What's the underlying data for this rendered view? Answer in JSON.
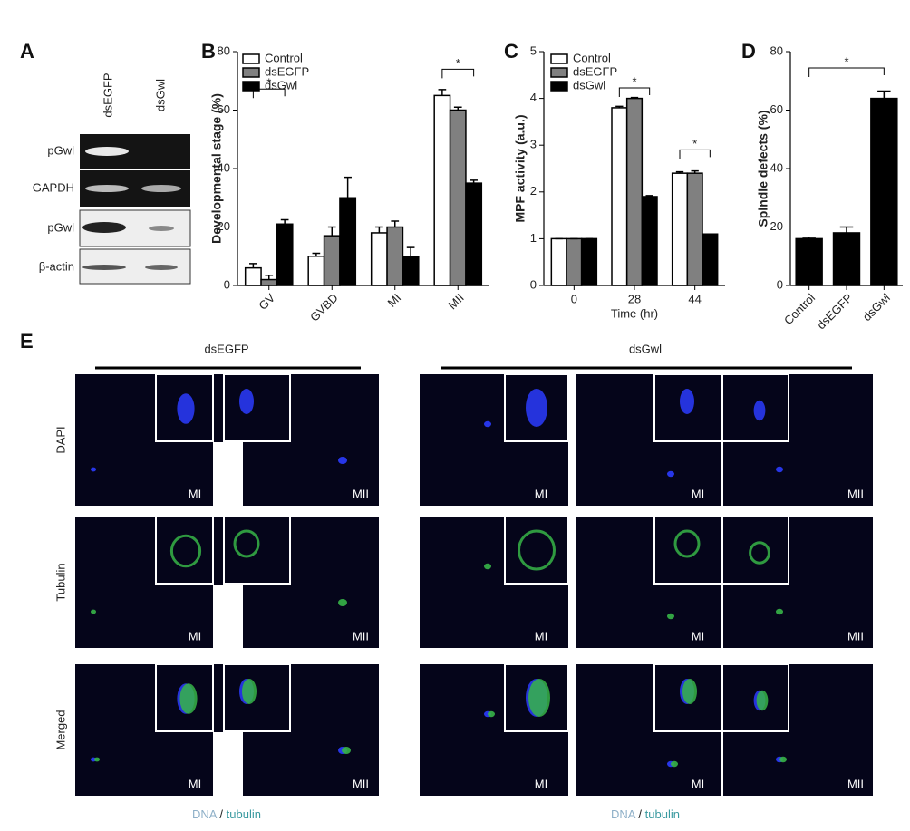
{
  "chart_data": [
    {
      "type": "bar",
      "label": "B",
      "ylabel": "Developmental stage (%)",
      "categories": [
        "GV",
        "GVBD",
        "MI",
        "MII"
      ],
      "series": [
        {
          "name": "Control",
          "color": "#ffffff",
          "values": [
            6,
            10,
            18,
            65
          ],
          "errors": [
            1.5,
            1,
            2,
            2
          ]
        },
        {
          "name": "dsEGFP",
          "color": "#808080",
          "values": [
            2,
            17,
            20,
            60
          ],
          "errors": [
            1.5,
            3,
            2,
            1
          ]
        },
        {
          "name": "dsGwl",
          "color": "#000000",
          "values": [
            21,
            30,
            10,
            35
          ],
          "errors": [
            1.5,
            7,
            3,
            1
          ]
        }
      ],
      "ylim": [
        0,
        80
      ],
      "yticks": [
        0,
        20,
        40,
        60,
        80
      ],
      "xtick_rotation": 45,
      "legend": "upper left",
      "annotations": [
        "*",
        "*"
      ]
    },
    {
      "type": "bar",
      "label": "C",
      "ylabel": "MPF activity (a.u.)",
      "xlabel": "Time (hr)",
      "categories": [
        "0",
        "28",
        "44"
      ],
      "series": [
        {
          "name": "Control",
          "color": "#ffffff",
          "values": [
            1,
            3.8,
            2.4
          ],
          "errors": [
            0,
            0.03,
            0.03
          ]
        },
        {
          "name": "dsEGFP",
          "color": "#808080",
          "values": [
            1,
            4.0,
            2.4
          ],
          "errors": [
            0,
            0.02,
            0.05
          ]
        },
        {
          "name": "dsGwl",
          "color": "#000000",
          "values": [
            1,
            1.9,
            1.1
          ],
          "errors": [
            0,
            0.02,
            0
          ]
        }
      ],
      "ylim": [
        0,
        5
      ],
      "yticks": [
        0,
        1,
        2,
        3,
        4,
        5
      ],
      "xtick_rotation": 0,
      "legend": "upper left",
      "annotations": [
        "*",
        "*"
      ]
    },
    {
      "type": "bar",
      "label": "D",
      "ylabel": "Spindle defects (%)",
      "categories": [
        "Control",
        "dsEGFP",
        "dsGwl"
      ],
      "values": [
        16,
        18,
        64
      ],
      "errors": [
        0.5,
        2,
        2.5
      ],
      "color": "#000000",
      "ylim": [
        0,
        80
      ],
      "yticks": [
        0,
        20,
        40,
        60,
        80
      ],
      "xtick_rotation": 45,
      "annotations": [
        "*"
      ]
    }
  ],
  "panels": {
    "A": {
      "label": "A",
      "lanes": [
        "dsEGFP",
        "dsGwl"
      ],
      "rows": [
        "pGwl",
        "GAPDH",
        "pGwl",
        "β-actin"
      ]
    },
    "E": {
      "label": "E",
      "groups": [
        "dsEGFP",
        "dsGwl"
      ],
      "rows": [
        {
          "label": "DAPI",
          "stages": [
            "MI",
            "MII",
            "MI",
            "MI",
            "MII"
          ]
        },
        {
          "label": "Tubulin",
          "stages": [
            "MI",
            "MII",
            "MI",
            "MI",
            "MII"
          ]
        },
        {
          "label": "Merged",
          "stages": [
            "MI",
            "MII",
            "MI",
            "MI",
            "MII"
          ]
        }
      ],
      "footers": [
        [
          "DNA",
          "/",
          "tubulin"
        ],
        [
          "DNA",
          "/",
          "tubulin"
        ]
      ]
    }
  }
}
